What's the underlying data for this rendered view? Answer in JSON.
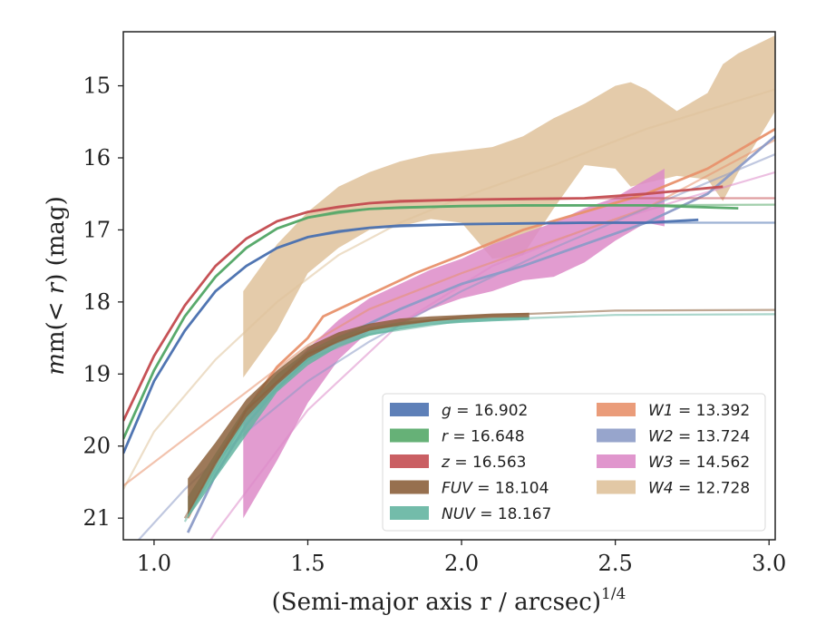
{
  "chart_data": {
    "type": "line",
    "xlabel": "(Semi-major axis r / arcsec)",
    "xlabel_exponent": "1/4",
    "ylabel_prefix": "m(",
    "ylabel_math": "< r",
    "ylabel_suffix": ") (mag)",
    "xlim": [
      0.9,
      3.02
    ],
    "ylim": [
      21.3,
      14.25
    ],
    "x_ticks": [
      1.0,
      1.5,
      2.0,
      2.5,
      3.0
    ],
    "x_tick_labels": [
      "1.0",
      "1.5",
      "2.0",
      "2.5",
      "3.0"
    ],
    "y_ticks": [
      15,
      16,
      17,
      18,
      19,
      20,
      21
    ],
    "y_tick_labels": [
      "15",
      "16",
      "17",
      "18",
      "19",
      "20",
      "21"
    ],
    "grid": false,
    "legend_position": "lower-right",
    "series": [
      {
        "name": "g",
        "legend_label": "= 16.902",
        "color": "#4c72b0",
        "data_x": [
          0.9,
          1.0,
          1.1,
          1.2,
          1.3,
          1.4,
          1.5,
          1.6,
          1.7,
          1.8,
          2.0,
          2.2,
          2.4,
          2.6,
          2.77
        ],
        "data_y": [
          20.1,
          19.1,
          18.4,
          17.85,
          17.5,
          17.25,
          17.1,
          17.02,
          16.97,
          16.94,
          16.92,
          16.91,
          16.9,
          16.9,
          16.86
        ],
        "model_x": [
          0.9,
          1.0,
          1.1,
          1.2,
          1.3,
          1.4,
          1.5,
          1.7,
          2.0,
          2.5,
          3.02
        ],
        "model_y": [
          20.1,
          19.1,
          18.4,
          17.85,
          17.5,
          17.25,
          17.1,
          16.97,
          16.92,
          16.9,
          16.9
        ]
      },
      {
        "name": "r",
        "legend_label": "= 16.648",
        "color": "#55a868",
        "data_x": [
          0.9,
          1.0,
          1.1,
          1.2,
          1.3,
          1.4,
          1.5,
          1.6,
          1.7,
          1.8,
          2.0,
          2.2,
          2.4,
          2.6,
          2.9
        ],
        "data_y": [
          19.9,
          18.95,
          18.2,
          17.65,
          17.25,
          16.98,
          16.83,
          16.75,
          16.71,
          16.69,
          16.67,
          16.66,
          16.66,
          16.66,
          16.7
        ],
        "model_x": [
          0.9,
          1.0,
          1.1,
          1.2,
          1.3,
          1.4,
          1.5,
          1.7,
          2.0,
          2.5,
          3.02
        ],
        "model_y": [
          19.9,
          18.95,
          18.2,
          17.65,
          17.25,
          16.98,
          16.83,
          16.71,
          16.67,
          16.66,
          16.65
        ]
      },
      {
        "name": "z",
        "legend_label": "= 16.563",
        "color": "#c44e52",
        "data_x": [
          0.9,
          1.0,
          1.1,
          1.2,
          1.3,
          1.4,
          1.5,
          1.6,
          1.7,
          1.8,
          2.0,
          2.2,
          2.4,
          2.6,
          2.85
        ],
        "data_y": [
          19.65,
          18.75,
          18.05,
          17.5,
          17.12,
          16.88,
          16.75,
          16.68,
          16.63,
          16.6,
          16.58,
          16.57,
          16.56,
          16.5,
          16.4
        ],
        "model_x": [
          0.9,
          1.0,
          1.1,
          1.2,
          1.3,
          1.4,
          1.5,
          1.7,
          2.0,
          2.5,
          3.02
        ],
        "model_y": [
          19.65,
          18.75,
          18.05,
          17.5,
          17.12,
          16.88,
          16.75,
          16.63,
          16.58,
          16.56,
          16.56
        ]
      },
      {
        "name": "FUV",
        "legend_label": "= 18.104",
        "color": "#8c613c",
        "band_x": [
          1.11,
          1.2,
          1.3,
          1.4,
          1.5,
          1.6,
          1.7,
          1.8,
          1.9,
          2.0,
          2.1,
          2.22
        ],
        "band_upper": [
          20.45,
          19.95,
          19.35,
          18.95,
          18.62,
          18.42,
          18.3,
          18.23,
          18.2,
          18.18,
          18.16,
          18.15
        ],
        "band_lower": [
          20.95,
          20.25,
          19.6,
          19.15,
          18.78,
          18.55,
          18.4,
          18.32,
          18.27,
          18.24,
          18.22,
          18.21
        ],
        "model_x": [
          1.1,
          1.3,
          1.5,
          1.7,
          2.0,
          2.5,
          3.02
        ],
        "model_y": [
          21.0,
          19.5,
          18.72,
          18.38,
          18.2,
          18.12,
          18.11
        ]
      },
      {
        "name": "NUV",
        "legend_label": "= 18.167",
        "color": "#64b5a1",
        "band_x": [
          1.11,
          1.2,
          1.3,
          1.4,
          1.5,
          1.6,
          1.7,
          1.8,
          1.9,
          2.0,
          2.1,
          2.22
        ],
        "band_upper": [
          20.7,
          20.1,
          19.45,
          19.0,
          18.68,
          18.47,
          18.35,
          18.28,
          18.24,
          18.22,
          18.21,
          18.2
        ],
        "band_lower": [
          21.0,
          20.45,
          19.85,
          19.25,
          18.88,
          18.62,
          18.47,
          18.38,
          18.32,
          18.29,
          18.27,
          18.25
        ],
        "model_x": [
          1.1,
          1.3,
          1.5,
          1.7,
          2.0,
          2.5,
          3.02
        ],
        "model_y": [
          21.05,
          19.6,
          18.8,
          18.45,
          18.26,
          18.18,
          18.17
        ]
      },
      {
        "name": "W1",
        "legend_label": "= 13.392",
        "color": "#e8916b",
        "data_x": [
          1.11,
          1.2,
          1.3,
          1.4,
          1.5,
          1.55,
          1.65,
          1.75,
          1.85,
          2.0,
          2.2,
          2.4,
          2.6,
          2.8,
          3.02
        ],
        "data_y": [
          21.0,
          20.2,
          19.5,
          18.9,
          18.5,
          18.2,
          18.0,
          17.8,
          17.6,
          17.35,
          17.0,
          16.75,
          16.5,
          16.15,
          15.6
        ],
        "model_x": [
          0.9,
          1.1,
          1.3,
          1.5,
          1.7,
          2.0,
          2.3,
          2.6,
          3.02
        ],
        "model_y": [
          20.55,
          19.9,
          19.25,
          18.6,
          18.1,
          17.6,
          17.15,
          16.7,
          15.75
        ]
      },
      {
        "name": "W2",
        "legend_label": "= 13.724",
        "color": "#8c9bc7",
        "data_x": [
          1.11,
          1.2,
          1.3,
          1.4,
          1.5,
          1.6,
          1.8,
          2.0,
          2.2,
          2.4,
          2.6,
          2.8,
          3.02
        ],
        "data_y": [
          21.2,
          20.4,
          19.7,
          19.2,
          18.8,
          18.5,
          18.1,
          17.75,
          17.5,
          17.2,
          16.9,
          16.5,
          15.7
        ],
        "model_x": [
          0.95,
          1.1,
          1.3,
          1.5,
          1.7,
          2.0,
          2.3,
          2.6,
          3.02
        ],
        "model_y": [
          21.3,
          20.6,
          19.8,
          19.1,
          18.55,
          17.85,
          17.25,
          16.7,
          15.95
        ]
      },
      {
        "name": "W3",
        "legend_label": "= 14.562",
        "color": "#dd8bc8",
        "band_x": [
          1.29,
          1.4,
          1.5,
          1.6,
          1.7,
          1.8,
          1.9,
          2.0,
          2.1,
          2.2,
          2.3,
          2.4,
          2.5,
          2.6,
          2.66
        ],
        "band_upper": [
          19.65,
          19.1,
          18.65,
          18.25,
          17.95,
          17.75,
          17.55,
          17.4,
          17.2,
          17.05,
          16.9,
          16.7,
          16.55,
          16.3,
          16.15
        ],
        "band_lower": [
          21.0,
          20.2,
          19.4,
          18.8,
          18.4,
          18.3,
          18.1,
          17.95,
          17.85,
          17.7,
          17.65,
          17.45,
          17.15,
          16.9,
          16.95
        ],
        "model_x": [
          1.0,
          1.2,
          1.5,
          1.8,
          2.1,
          2.4,
          2.7,
          3.02
        ],
        "model_y": [
          22.5,
          21.2,
          19.5,
          18.3,
          17.5,
          17.0,
          16.6,
          16.2
        ]
      },
      {
        "name": "W4",
        "legend_label": "= 12.728",
        "color": "#dfc29b",
        "band_x": [
          1.29,
          1.4,
          1.5,
          1.6,
          1.7,
          1.8,
          1.9,
          2.0,
          2.1,
          2.2,
          2.3,
          2.4,
          2.5,
          2.55,
          2.6,
          2.7,
          2.8,
          2.85,
          2.9,
          3.02
        ],
        "band_upper": [
          17.85,
          17.2,
          16.75,
          16.4,
          16.2,
          16.05,
          15.95,
          15.9,
          15.85,
          15.7,
          15.45,
          15.25,
          15.0,
          14.95,
          15.05,
          15.35,
          15.1,
          14.7,
          14.55,
          14.3
        ],
        "band_lower": [
          19.05,
          18.4,
          17.6,
          17.25,
          17.0,
          16.95,
          16.85,
          16.9,
          17.4,
          17.35,
          16.7,
          16.1,
          16.15,
          16.4,
          16.35,
          16.25,
          16.3,
          16.6,
          16.2,
          15.35
        ],
        "model_x": [
          0.9,
          1.0,
          1.2,
          1.4,
          1.6,
          1.8,
          2.0,
          2.3,
          2.6,
          3.02
        ],
        "model_y": [
          20.6,
          19.8,
          18.8,
          18.0,
          17.35,
          16.9,
          16.55,
          16.1,
          15.6,
          15.05
        ]
      }
    ]
  }
}
